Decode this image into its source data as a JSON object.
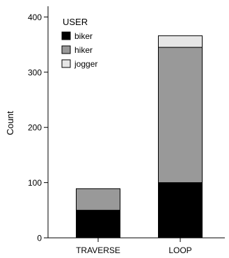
{
  "chart_data": {
    "type": "bar",
    "stacked": true,
    "categories": [
      "TRAVERSE",
      "LOOP"
    ],
    "series": [
      {
        "name": "biker",
        "values": [
          50,
          100
        ],
        "color": "#000000"
      },
      {
        "name": "hiker",
        "values": [
          39,
          245
        ],
        "color": "#999999"
      },
      {
        "name": "jogger",
        "values": [
          0,
          21
        ],
        "color": "#e6e6e6"
      }
    ],
    "xlabel": "",
    "ylabel": "Count",
    "ylim": [
      0,
      420
    ],
    "yticks": [
      0,
      100,
      200,
      300,
      400
    ],
    "grid": false,
    "legend": {
      "title": "USER",
      "placement": "top-left"
    }
  }
}
